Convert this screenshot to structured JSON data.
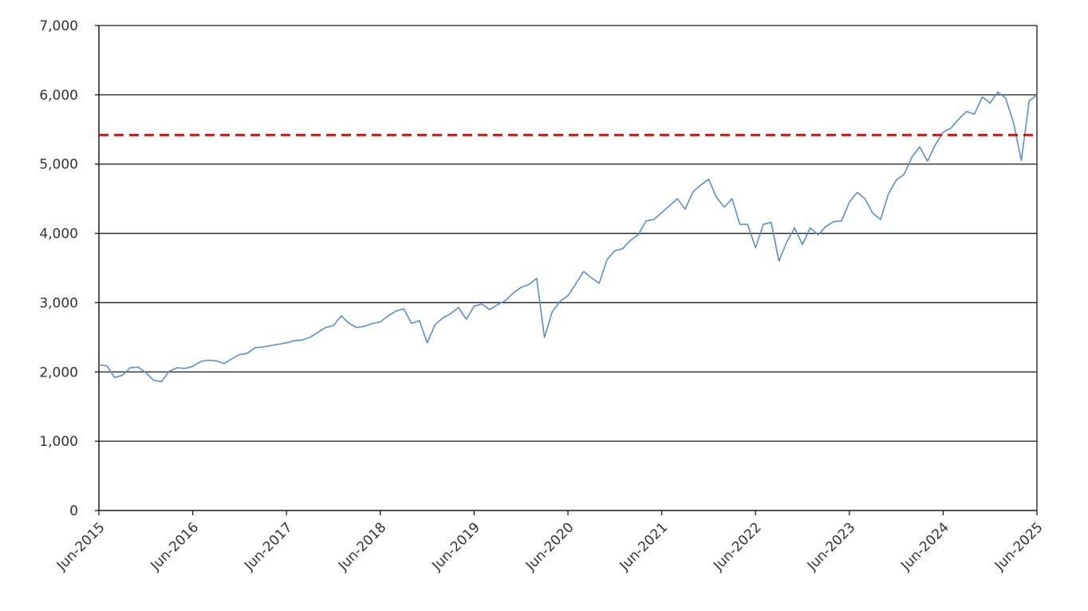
{
  "chart_data": {
    "type": "line",
    "title": "",
    "xlabel": "",
    "ylabel": "",
    "ylim": [
      0,
      7000
    ],
    "xlim": [
      "Jun-2015",
      "Jun-2025"
    ],
    "grid": "horizontal",
    "legend": "none",
    "y_ticks": [
      "0",
      "1,000",
      "2,000",
      "3,000",
      "4,000",
      "5,000",
      "6,000",
      "7,000"
    ],
    "x_ticks": [
      "Jun-2015",
      "Jun-2016",
      "Jun-2017",
      "Jun-2018",
      "Jun-2019",
      "Jun-2020",
      "Jun-2021",
      "Jun-2022",
      "Jun-2023",
      "Jun-2024",
      "Jun-2025"
    ],
    "series": [
      {
        "color": "#5b8fc7",
        "x": [
          "2015-06",
          "2015-07",
          "2015-08",
          "2015-09",
          "2015-10",
          "2015-11",
          "2015-12",
          "2016-01",
          "2016-02",
          "2016-03",
          "2016-04",
          "2016-05",
          "2016-06",
          "2016-07",
          "2016-08",
          "2016-09",
          "2016-10",
          "2016-11",
          "2016-12",
          "2017-01",
          "2017-02",
          "2017-03",
          "2017-04",
          "2017-05",
          "2017-06",
          "2017-07",
          "2017-08",
          "2017-09",
          "2017-10",
          "2017-11",
          "2017-12",
          "2018-01",
          "2018-02",
          "2018-03",
          "2018-04",
          "2018-05",
          "2018-06",
          "2018-07",
          "2018-08",
          "2018-09",
          "2018-10",
          "2018-11",
          "2018-12",
          "2019-01",
          "2019-02",
          "2019-03",
          "2019-04",
          "2019-05",
          "2019-06",
          "2019-07",
          "2019-08",
          "2019-09",
          "2019-10",
          "2019-11",
          "2019-12",
          "2020-01",
          "2020-02",
          "2020-03",
          "2020-04",
          "2020-05",
          "2020-06",
          "2020-07",
          "2020-08",
          "2020-09",
          "2020-10",
          "2020-11",
          "2020-12",
          "2021-01",
          "2021-02",
          "2021-03",
          "2021-04",
          "2021-05",
          "2021-06",
          "2021-07",
          "2021-08",
          "2021-09",
          "2021-10",
          "2021-11",
          "2021-12",
          "2022-01",
          "2022-02",
          "2022-03",
          "2022-04",
          "2022-05",
          "2022-06",
          "2022-07",
          "2022-08",
          "2022-09",
          "2022-10",
          "2022-11",
          "2022-12",
          "2023-01",
          "2023-02",
          "2023-03",
          "2023-04",
          "2023-05",
          "2023-06",
          "2023-07",
          "2023-08",
          "2023-09",
          "2023-10",
          "2023-11",
          "2023-12",
          "2024-01",
          "2024-02",
          "2024-03",
          "2024-04",
          "2024-05",
          "2024-06",
          "2024-07",
          "2024-08",
          "2024-09",
          "2024-10",
          "2024-11",
          "2024-12",
          "2025-01",
          "2025-02",
          "2025-03",
          "2025-04",
          "2025-05",
          "2025-06"
        ],
        "y": [
          2100,
          2090,
          1920,
          1950,
          2060,
          2070,
          1990,
          1880,
          1860,
          2010,
          2060,
          2050,
          2080,
          2150,
          2170,
          2160,
          2120,
          2190,
          2250,
          2270,
          2350,
          2360,
          2380,
          2400,
          2420,
          2450,
          2460,
          2500,
          2570,
          2640,
          2670,
          2810,
          2700,
          2640,
          2660,
          2700,
          2720,
          2810,
          2880,
          2910,
          2700,
          2740,
          2420,
          2680,
          2780,
          2840,
          2930,
          2760,
          2950,
          2980,
          2900,
          2970,
          3030,
          3140,
          3220,
          3260,
          3350,
          2500,
          2870,
          3020,
          3100,
          3270,
          3450,
          3360,
          3280,
          3620,
          3750,
          3780,
          3900,
          3980,
          4180,
          4200,
          4300,
          4400,
          4500,
          4350,
          4600,
          4700,
          4780,
          4520,
          4380,
          4500,
          4130,
          4130,
          3790,
          4130,
          4160,
          3600,
          3880,
          4080,
          3840,
          4080,
          3980,
          4100,
          4170,
          4180,
          4450,
          4590,
          4500,
          4290,
          4200,
          4570,
          4770,
          4850,
          5100,
          5250,
          5040,
          5280,
          5460,
          5520,
          5650,
          5760,
          5720,
          5970,
          5880,
          6040,
          5950,
          5600,
          5050,
          5910,
          6000
        ]
      }
    ],
    "reference_line": {
      "value": 5420,
      "color": "#cc1111",
      "style": "dashed"
    }
  }
}
